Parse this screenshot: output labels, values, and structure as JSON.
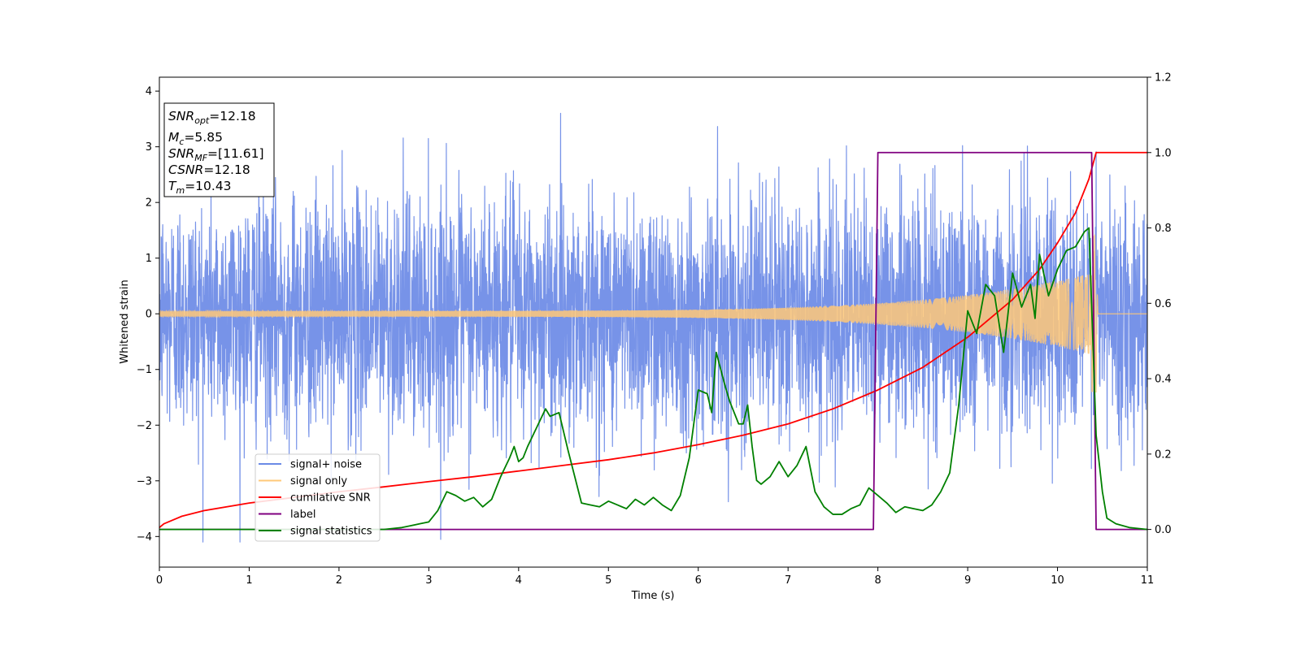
{
  "chart_data": {
    "type": "line",
    "title": "",
    "xlabel": "Time (s)",
    "ylabel": "Whitened strain",
    "xlim": [
      0,
      11
    ],
    "ylim_left": [
      -4.55,
      4.25
    ],
    "ylim_right": [
      -0.1,
      1.2
    ],
    "x_ticks": [
      0,
      1,
      2,
      3,
      4,
      5,
      6,
      7,
      8,
      9,
      10,
      11
    ],
    "y_ticks_left": [
      -4,
      -3,
      -2,
      -1,
      0,
      1,
      2,
      3,
      4
    ],
    "y_ticks_right": [
      0.0,
      0.2,
      0.4,
      0.6,
      0.8,
      1.0,
      1.2
    ],
    "y_tick_labels_left": [
      "−4",
      "−3",
      "−2",
      "−1",
      "0",
      "1",
      "2",
      "3",
      "4"
    ],
    "y_tick_labels_right": [
      "0.0",
      "0.2",
      "0.4",
      "0.6",
      "0.8",
      "1.0",
      "1.2"
    ],
    "grid": false,
    "legend_position": "lower-left",
    "series": [
      {
        "name": "signal+ noise",
        "axis": "left",
        "color": "#6b8ae6",
        "description": "dense whitened noise, approx. amplitude range [-4.1, 3.8] across 0-11 s"
      },
      {
        "name": "signal only",
        "axis": "left",
        "color": "#ffc878",
        "chirp": {
          "start_amplitude": 0.05,
          "end_amplitude": 0.75,
          "merger_time": 10.43,
          "end_time": 10.45
        }
      },
      {
        "name": "cumilative SNR",
        "axis": "right",
        "color": "#ff0000",
        "x": [
          0,
          0.05,
          0.25,
          0.5,
          1,
          1.5,
          2,
          2.5,
          3,
          3.5,
          4,
          4.5,
          5,
          5.5,
          6,
          6.5,
          7,
          7.5,
          8,
          8.5,
          9,
          9.5,
          9.8,
          10,
          10.2,
          10.35,
          10.43,
          10.5,
          11
        ],
        "y": [
          0.005,
          0.015,
          0.035,
          0.05,
          0.07,
          0.085,
          0.1,
          0.113,
          0.127,
          0.14,
          0.155,
          0.17,
          0.185,
          0.203,
          0.225,
          0.25,
          0.28,
          0.32,
          0.37,
          0.43,
          0.51,
          0.61,
          0.69,
          0.76,
          0.84,
          0.93,
          1.0,
          1.0,
          1.0
        ]
      },
      {
        "name": "label",
        "axis": "right",
        "color": "#800080",
        "x": [
          0,
          7.95,
          8.0,
          10.38,
          10.43,
          11
        ],
        "y": [
          0,
          0,
          1,
          1,
          0,
          0
        ]
      },
      {
        "name": "signal statistics",
        "axis": "right",
        "color": "#008000",
        "x": [
          0,
          0.5,
          1,
          2,
          2.5,
          2.7,
          2.8,
          2.9,
          3.0,
          3.1,
          3.2,
          3.3,
          3.4,
          3.5,
          3.6,
          3.7,
          3.8,
          3.9,
          3.95,
          4.0,
          4.05,
          4.1,
          4.2,
          4.3,
          4.35,
          4.45,
          4.55,
          4.7,
          4.8,
          4.9,
          5.0,
          5.1,
          5.2,
          5.3,
          5.4,
          5.5,
          5.6,
          5.7,
          5.8,
          5.9,
          6.0,
          6.1,
          6.15,
          6.2,
          6.3,
          6.35,
          6.45,
          6.5,
          6.55,
          6.6,
          6.65,
          6.7,
          6.8,
          6.9,
          7.0,
          7.1,
          7.2,
          7.3,
          7.4,
          7.5,
          7.6,
          7.7,
          7.8,
          7.9,
          8.0,
          8.1,
          8.2,
          8.3,
          8.4,
          8.5,
          8.6,
          8.7,
          8.8,
          8.9,
          9.0,
          9.1,
          9.2,
          9.3,
          9.4,
          9.5,
          9.6,
          9.7,
          9.75,
          9.8,
          9.9,
          10.0,
          10.1,
          10.2,
          10.3,
          10.35,
          10.43,
          10.5,
          10.55,
          10.65,
          10.8,
          11
        ],
        "y": [
          0,
          0,
          0,
          0,
          0,
          0.005,
          0.01,
          0.015,
          0.02,
          0.05,
          0.1,
          0.09,
          0.075,
          0.085,
          0.06,
          0.08,
          0.14,
          0.19,
          0.22,
          0.18,
          0.19,
          0.22,
          0.27,
          0.32,
          0.3,
          0.31,
          0.21,
          0.07,
          0.065,
          0.06,
          0.075,
          0.065,
          0.055,
          0.08,
          0.065,
          0.085,
          0.065,
          0.05,
          0.09,
          0.19,
          0.37,
          0.36,
          0.31,
          0.47,
          0.38,
          0.34,
          0.28,
          0.28,
          0.33,
          0.22,
          0.13,
          0.12,
          0.14,
          0.18,
          0.14,
          0.17,
          0.22,
          0.1,
          0.06,
          0.04,
          0.04,
          0.055,
          0.065,
          0.11,
          0.09,
          0.07,
          0.045,
          0.06,
          0.055,
          0.05,
          0.065,
          0.1,
          0.15,
          0.33,
          0.58,
          0.52,
          0.65,
          0.62,
          0.47,
          0.68,
          0.59,
          0.65,
          0.56,
          0.73,
          0.62,
          0.69,
          0.74,
          0.75,
          0.79,
          0.8,
          0.25,
          0.1,
          0.03,
          0.015,
          0.005,
          0.0
        ]
      }
    ],
    "annotation": {
      "lines": [
        {
          "base": "SNR",
          "sub": "opt",
          "rest": "=12.18"
        },
        {
          "base": "M",
          "sub": "c",
          "rest": "=5.85"
        },
        {
          "base": "SNR",
          "sub": "MF",
          "rest": "=[11.61]"
        },
        {
          "base": "CSNR",
          "sub": "",
          "rest": "=12.18"
        },
        {
          "base": "T",
          "sub": "m",
          "rest": "=10.43"
        }
      ]
    }
  }
}
